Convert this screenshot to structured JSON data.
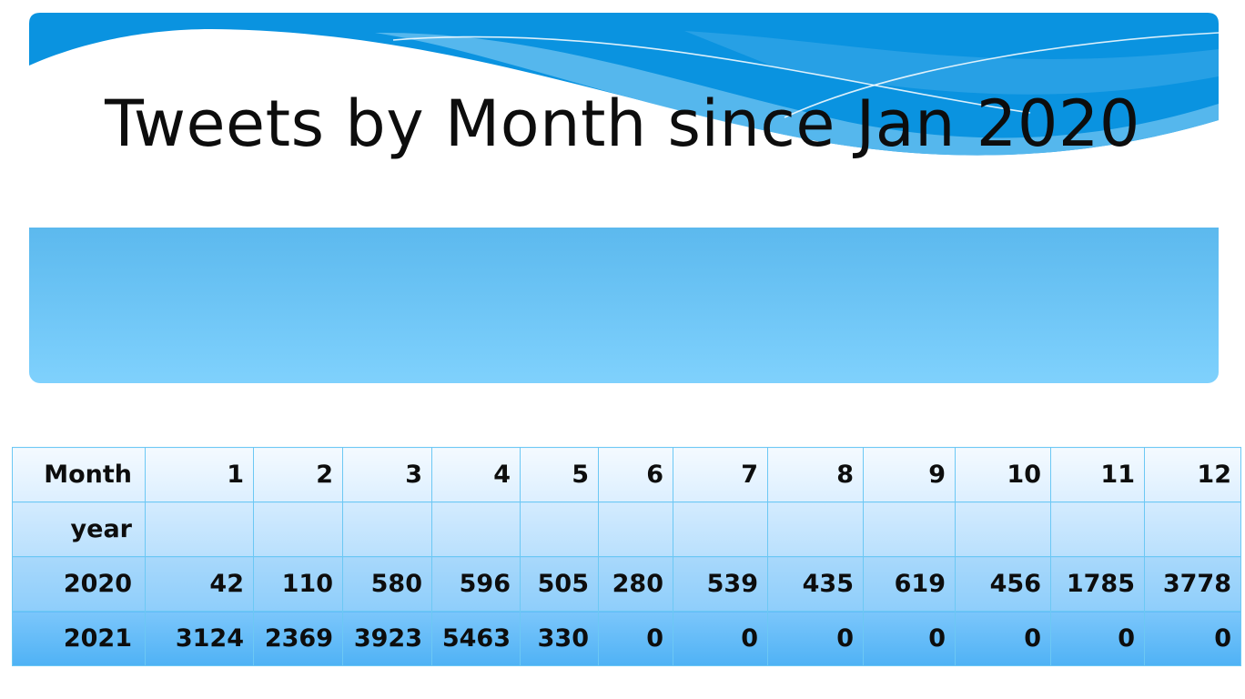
{
  "slide": {
    "title": "Tweets by Month since Jan 2020"
  },
  "colors": {
    "header_dark_blue": "#0a93e0",
    "header_light_blue": "#5dbbee",
    "panel_top": "#5cb9ee",
    "panel_bottom": "#7fd1fd",
    "table_border": "#6cc8f4"
  },
  "chart_data": {
    "type": "table",
    "columns_header_label": "Month",
    "year_header_label": "year",
    "months": [
      "1",
      "2",
      "3",
      "4",
      "5",
      "6",
      "7",
      "8",
      "9",
      "10",
      "11",
      "12"
    ],
    "rows": [
      {
        "year": "2020",
        "values": [
          "42",
          "110",
          "580",
          "596",
          "505",
          "280",
          "539",
          "435",
          "619",
          "456",
          "1785",
          "3778"
        ]
      },
      {
        "year": "2021",
        "values": [
          "3124",
          "2369",
          "3923",
          "5463",
          "330",
          "0",
          "0",
          "0",
          "0",
          "0",
          "0",
          "0"
        ]
      }
    ]
  }
}
